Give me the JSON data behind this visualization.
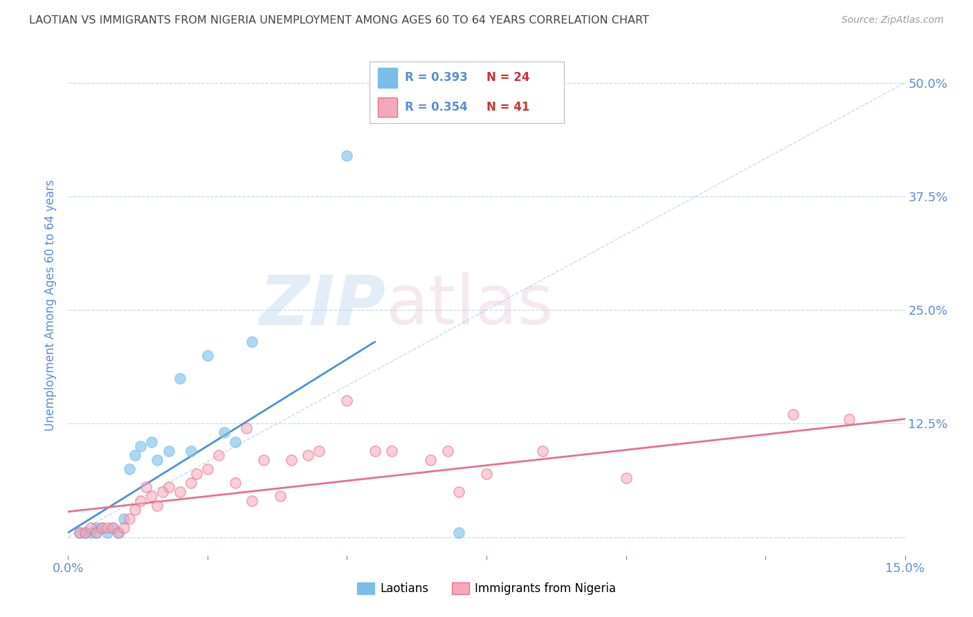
{
  "title": "LAOTIAN VS IMMIGRANTS FROM NIGERIA UNEMPLOYMENT AMONG AGES 60 TO 64 YEARS CORRELATION CHART",
  "source": "Source: ZipAtlas.com",
  "ylabel": "Unemployment Among Ages 60 to 64 years",
  "xlim": [
    0.0,
    0.15
  ],
  "ylim": [
    -0.02,
    0.53
  ],
  "yticks": [
    0.0,
    0.125,
    0.25,
    0.375,
    0.5
  ],
  "ytick_labels": [
    "",
    "12.5%",
    "25.0%",
    "37.5%",
    "50.0%"
  ],
  "xticks": [
    0.0,
    0.025,
    0.05,
    0.075,
    0.1,
    0.125,
    0.15
  ],
  "xtick_labels": [
    "0.0%",
    "",
    "",
    "",
    "",
    "",
    "15.0%"
  ],
  "color_blue": "#7bbde8",
  "color_pink": "#f5a8bb",
  "line_blue": "#4a90d9",
  "line_pink": "#e8708a",
  "legend_R1": "0.393",
  "legend_N1": "24",
  "legend_R2": "0.354",
  "legend_N2": "41",
  "label1": "Laotians",
  "label2": "Immigrants from Nigeria",
  "blue_scatter_x": [
    0.002,
    0.003,
    0.004,
    0.005,
    0.005,
    0.006,
    0.007,
    0.008,
    0.009,
    0.01,
    0.011,
    0.012,
    0.013,
    0.015,
    0.016,
    0.018,
    0.02,
    0.022,
    0.025,
    0.028,
    0.03,
    0.033,
    0.05,
    0.07
  ],
  "blue_scatter_y": [
    0.005,
    0.005,
    0.005,
    0.005,
    0.01,
    0.01,
    0.005,
    0.01,
    0.005,
    0.02,
    0.075,
    0.09,
    0.1,
    0.105,
    0.085,
    0.095,
    0.175,
    0.095,
    0.2,
    0.115,
    0.105,
    0.215,
    0.42,
    0.005
  ],
  "pink_scatter_x": [
    0.002,
    0.003,
    0.004,
    0.005,
    0.006,
    0.007,
    0.008,
    0.009,
    0.01,
    0.011,
    0.012,
    0.013,
    0.014,
    0.015,
    0.016,
    0.017,
    0.018,
    0.02,
    0.022,
    0.023,
    0.025,
    0.027,
    0.03,
    0.032,
    0.033,
    0.035,
    0.038,
    0.04,
    0.043,
    0.045,
    0.05,
    0.055,
    0.058,
    0.065,
    0.068,
    0.07,
    0.075,
    0.085,
    0.1,
    0.13,
    0.14
  ],
  "pink_scatter_y": [
    0.005,
    0.005,
    0.01,
    0.005,
    0.01,
    0.01,
    0.01,
    0.005,
    0.01,
    0.02,
    0.03,
    0.04,
    0.055,
    0.045,
    0.035,
    0.05,
    0.055,
    0.05,
    0.06,
    0.07,
    0.075,
    0.09,
    0.06,
    0.12,
    0.04,
    0.085,
    0.045,
    0.085,
    0.09,
    0.095,
    0.15,
    0.095,
    0.095,
    0.085,
    0.095,
    0.05,
    0.07,
    0.095,
    0.065,
    0.135,
    0.13
  ],
  "blue_line_x": [
    0.0,
    0.055
  ],
  "blue_line_y": [
    0.005,
    0.215
  ],
  "pink_line_x": [
    0.0,
    0.15
  ],
  "pink_line_y": [
    0.028,
    0.13
  ],
  "dashed_line_x": [
    0.0,
    0.15
  ],
  "dashed_line_y": [
    0.0,
    0.5
  ],
  "tick_color": "#5b8dd9",
  "axis_label_color": "#5b8dd9",
  "grid_color": "#c8d8ee",
  "title_color": "#444444",
  "source_color": "#999999"
}
